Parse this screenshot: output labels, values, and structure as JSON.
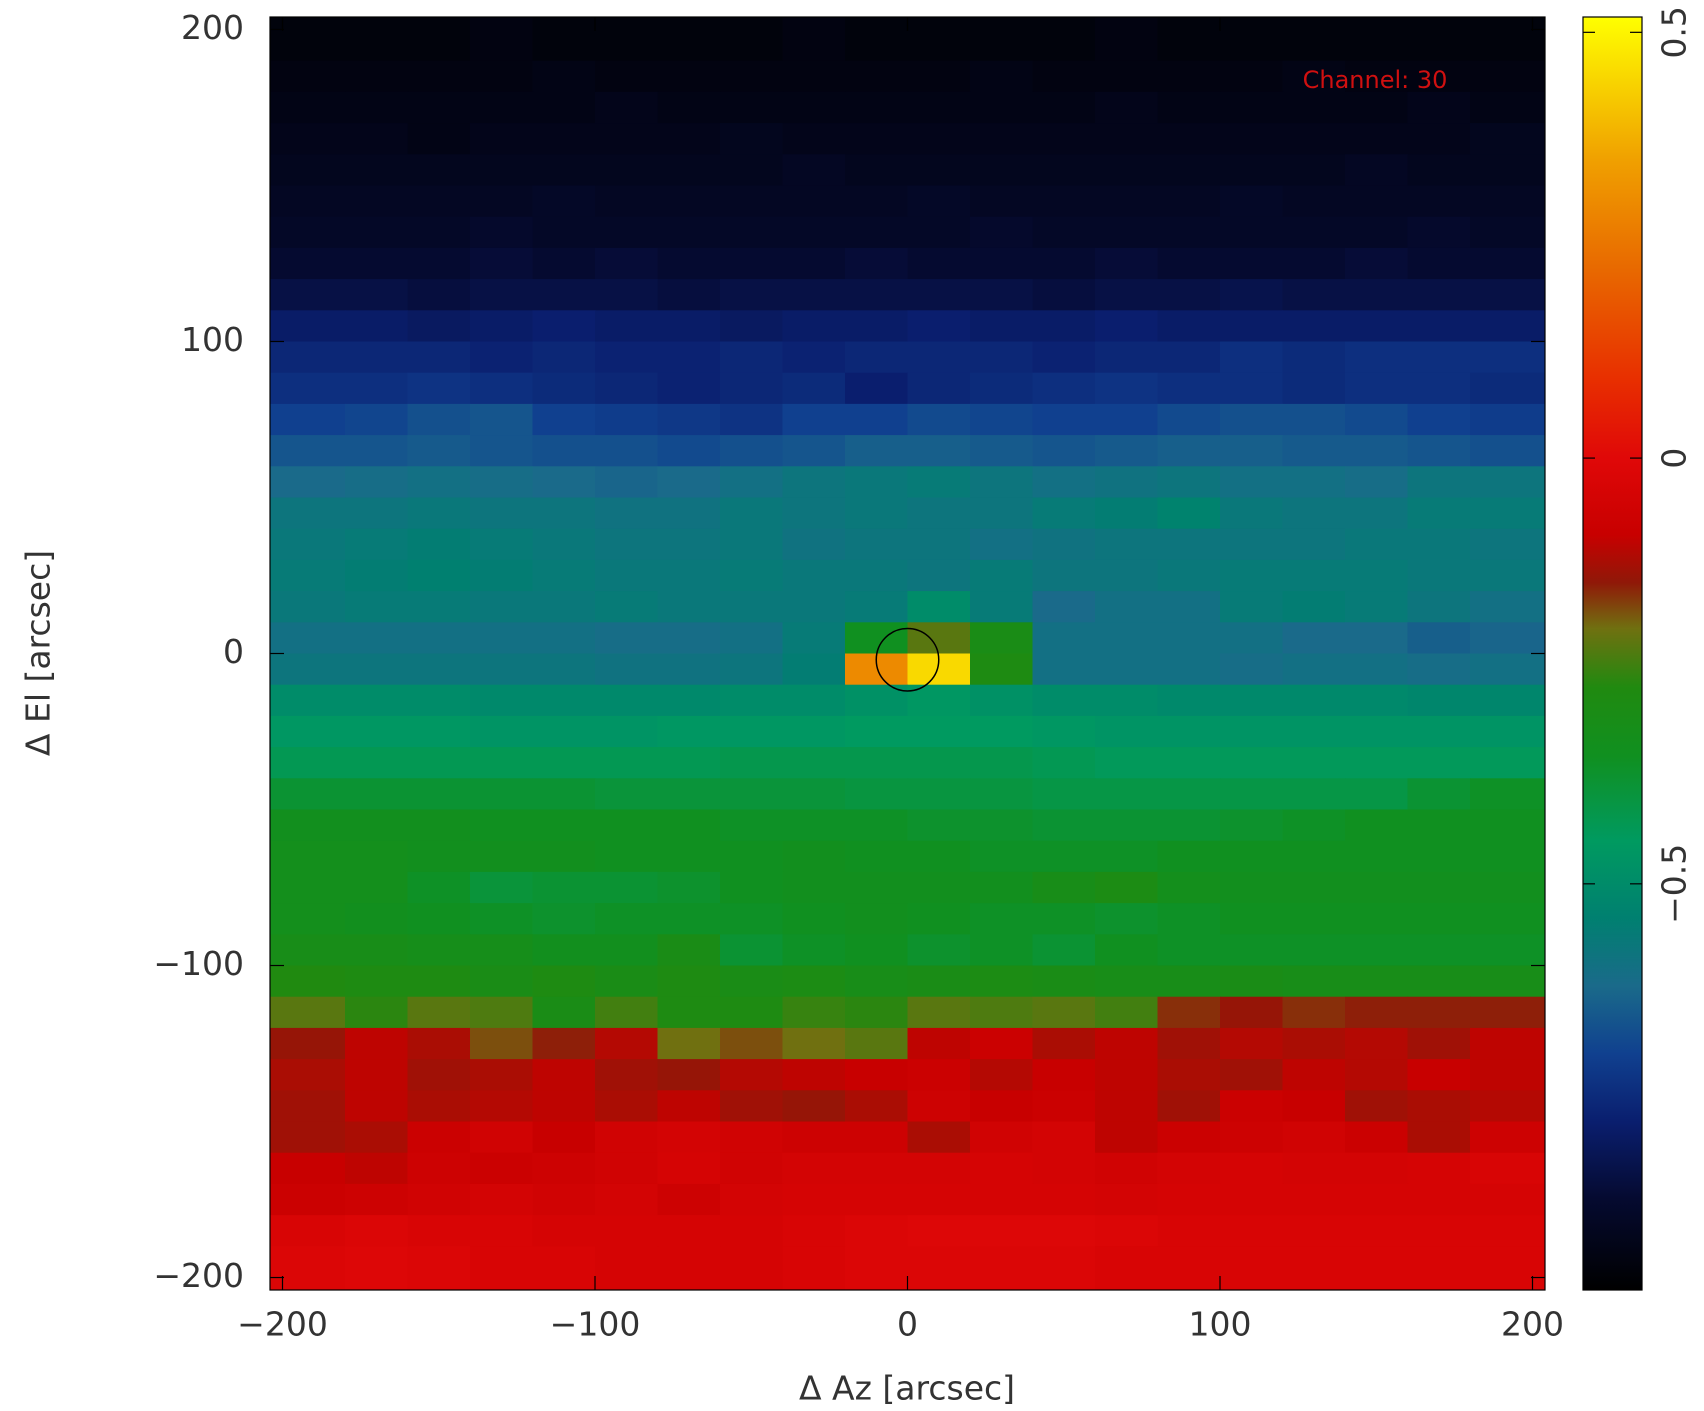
{
  "chart_data": {
    "type": "heatmap",
    "annotation": "Channel: 30",
    "xlabel": "Δ Az [arcsec]",
    "ylabel": "Δ El [arcsec]",
    "xlim": [
      -204,
      204
    ],
    "ylim": [
      -204,
      204
    ],
    "xticks": [
      {
        "value": -200,
        "label": "−200"
      },
      {
        "value": -100,
        "label": "−100"
      },
      0,
      100,
      200
    ],
    "yticks": [
      {
        "value": -200,
        "label": "−200"
      },
      {
        "value": -100,
        "label": "−100"
      },
      0,
      100,
      200
    ],
    "zlim": [
      -0.977,
      0.518
    ],
    "zticks": [
      {
        "value": -0.5,
        "label": "−0.5"
      },
      0,
      0.5
    ],
    "colormap": [
      [
        -0.977,
        "#000000"
      ],
      [
        -0.87,
        "#050a30"
      ],
      [
        -0.78,
        "#0a1e6e"
      ],
      [
        -0.7,
        "#10408f"
      ],
      [
        -0.62,
        "#1a6a8a"
      ],
      [
        -0.54,
        "#008070"
      ],
      [
        -0.45,
        "#009a60"
      ],
      [
        -0.35,
        "#109020"
      ],
      [
        -0.27,
        "#208a10"
      ],
      [
        -0.2,
        "#707010"
      ],
      [
        -0.146,
        "#901808"
      ],
      [
        -0.09,
        "#c80000"
      ],
      [
        0,
        "#e00808"
      ],
      [
        0.095,
        "#e83000"
      ],
      [
        0.22,
        "#e86800"
      ],
      [
        0.35,
        "#f0a000"
      ],
      [
        0.518,
        "#ffff00"
      ]
    ],
    "beam": {
      "x": 0,
      "y": -2,
      "radius": 10,
      "color": "#000000"
    },
    "x": [
      -190,
      -170,
      -150,
      -130,
      -110,
      -90,
      -70,
      -50,
      -30,
      -10,
      10,
      30,
      50,
      70,
      90,
      110,
      130,
      150,
      170,
      190
    ],
    "y": [
      195,
      185,
      175,
      165,
      155,
      145,
      135,
      125,
      115,
      105,
      95,
      85,
      75,
      65,
      55,
      45,
      35,
      25,
      15,
      5,
      -5,
      -15,
      -25,
      -35,
      -45,
      -55,
      -65,
      -75,
      -85,
      -95,
      -105,
      -115,
      -125,
      -135,
      -145,
      -155,
      -165,
      -175,
      -185,
      -195
    ],
    "z": [
      [
        -0.95,
        -0.95,
        -0.95,
        -0.94,
        -0.95,
        -0.95,
        -0.95,
        -0.95,
        -0.94,
        -0.95,
        -0.95,
        -0.95,
        -0.95,
        -0.94,
        -0.95,
        -0.95,
        -0.95,
        -0.95,
        -0.95,
        -0.95
      ],
      [
        -0.94,
        -0.94,
        -0.94,
        -0.94,
        -0.93,
        -0.94,
        -0.94,
        -0.94,
        -0.94,
        -0.94,
        -0.94,
        -0.93,
        -0.94,
        -0.94,
        -0.94,
        -0.94,
        -0.93,
        -0.94,
        -0.94,
        -0.94
      ],
      [
        -0.93,
        -0.93,
        -0.93,
        -0.93,
        -0.93,
        -0.92,
        -0.93,
        -0.93,
        -0.93,
        -0.93,
        -0.93,
        -0.93,
        -0.93,
        -0.92,
        -0.93,
        -0.93,
        -0.93,
        -0.93,
        -0.92,
        -0.93
      ],
      [
        -0.92,
        -0.92,
        -0.93,
        -0.92,
        -0.92,
        -0.92,
        -0.92,
        -0.91,
        -0.92,
        -0.92,
        -0.92,
        -0.92,
        -0.92,
        -0.92,
        -0.92,
        -0.92,
        -0.92,
        -0.92,
        -0.92,
        -0.91
      ],
      [
        -0.91,
        -0.91,
        -0.91,
        -0.91,
        -0.91,
        -0.91,
        -0.91,
        -0.91,
        -0.9,
        -0.91,
        -0.91,
        -0.91,
        -0.91,
        -0.91,
        -0.91,
        -0.91,
        -0.91,
        -0.9,
        -0.91,
        -0.91
      ],
      [
        -0.9,
        -0.9,
        -0.9,
        -0.9,
        -0.89,
        -0.9,
        -0.9,
        -0.9,
        -0.9,
        -0.9,
        -0.89,
        -0.9,
        -0.9,
        -0.9,
        -0.9,
        -0.89,
        -0.9,
        -0.9,
        -0.9,
        -0.9
      ],
      [
        -0.89,
        -0.89,
        -0.89,
        -0.88,
        -0.89,
        -0.89,
        -0.89,
        -0.89,
        -0.89,
        -0.89,
        -0.89,
        -0.88,
        -0.89,
        -0.89,
        -0.89,
        -0.89,
        -0.89,
        -0.89,
        -0.88,
        -0.89
      ],
      [
        -0.87,
        -0.87,
        -0.87,
        -0.86,
        -0.87,
        -0.86,
        -0.87,
        -0.87,
        -0.87,
        -0.86,
        -0.87,
        -0.87,
        -0.87,
        -0.86,
        -0.87,
        -0.87,
        -0.87,
        -0.86,
        -0.87,
        -0.87
      ],
      [
        -0.84,
        -0.84,
        -0.85,
        -0.84,
        -0.84,
        -0.84,
        -0.85,
        -0.84,
        -0.84,
        -0.84,
        -0.84,
        -0.84,
        -0.85,
        -0.84,
        -0.84,
        -0.83,
        -0.84,
        -0.84,
        -0.84,
        -0.84
      ],
      [
        -0.79,
        -0.79,
        -0.8,
        -0.79,
        -0.78,
        -0.79,
        -0.79,
        -0.8,
        -0.79,
        -0.79,
        -0.78,
        -0.79,
        -0.79,
        -0.78,
        -0.79,
        -0.79,
        -0.79,
        -0.79,
        -0.79,
        -0.79
      ],
      [
        -0.76,
        -0.76,
        -0.76,
        -0.77,
        -0.76,
        -0.77,
        -0.77,
        -0.76,
        -0.77,
        -0.76,
        -0.76,
        -0.76,
        -0.77,
        -0.76,
        -0.76,
        -0.74,
        -0.75,
        -0.74,
        -0.74,
        -0.74
      ],
      [
        -0.74,
        -0.74,
        -0.73,
        -0.74,
        -0.75,
        -0.76,
        -0.77,
        -0.76,
        -0.75,
        -0.78,
        -0.76,
        -0.75,
        -0.74,
        -0.73,
        -0.74,
        -0.74,
        -0.75,
        -0.74,
        -0.74,
        -0.75
      ],
      [
        -0.7,
        -0.69,
        -0.67,
        -0.66,
        -0.7,
        -0.71,
        -0.72,
        -0.73,
        -0.7,
        -0.7,
        -0.68,
        -0.69,
        -0.7,
        -0.7,
        -0.68,
        -0.67,
        -0.67,
        -0.68,
        -0.7,
        -0.71
      ],
      [
        -0.66,
        -0.66,
        -0.65,
        -0.66,
        -0.67,
        -0.67,
        -0.68,
        -0.67,
        -0.66,
        -0.64,
        -0.64,
        -0.65,
        -0.66,
        -0.65,
        -0.64,
        -0.64,
        -0.65,
        -0.65,
        -0.66,
        -0.67
      ],
      [
        -0.62,
        -0.61,
        -0.6,
        -0.61,
        -0.62,
        -0.63,
        -0.62,
        -0.6,
        -0.58,
        -0.57,
        -0.56,
        -0.58,
        -0.6,
        -0.59,
        -0.58,
        -0.6,
        -0.6,
        -0.61,
        -0.58,
        -0.58
      ],
      [
        -0.58,
        -0.58,
        -0.57,
        -0.58,
        -0.58,
        -0.59,
        -0.59,
        -0.57,
        -0.58,
        -0.57,
        -0.58,
        -0.58,
        -0.56,
        -0.55,
        -0.53,
        -0.57,
        -0.58,
        -0.58,
        -0.56,
        -0.56
      ],
      [
        -0.57,
        -0.56,
        -0.55,
        -0.56,
        -0.57,
        -0.58,
        -0.58,
        -0.57,
        -0.59,
        -0.58,
        -0.58,
        -0.6,
        -0.59,
        -0.58,
        -0.58,
        -0.58,
        -0.58,
        -0.57,
        -0.57,
        -0.58
      ],
      [
        -0.56,
        -0.55,
        -0.54,
        -0.55,
        -0.56,
        -0.57,
        -0.57,
        -0.56,
        -0.57,
        -0.57,
        -0.58,
        -0.56,
        -0.58,
        -0.58,
        -0.57,
        -0.56,
        -0.56,
        -0.56,
        -0.57,
        -0.57
      ],
      [
        -0.57,
        -0.56,
        -0.56,
        -0.57,
        -0.57,
        -0.56,
        -0.57,
        -0.57,
        -0.57,
        -0.56,
        -0.5,
        -0.56,
        -0.62,
        -0.6,
        -0.6,
        -0.56,
        -0.55,
        -0.56,
        -0.58,
        -0.6
      ],
      [
        -0.6,
        -0.6,
        -0.6,
        -0.6,
        -0.6,
        -0.61,
        -0.61,
        -0.6,
        -0.56,
        -0.35,
        -0.22,
        -0.3,
        -0.6,
        -0.6,
        -0.6,
        -0.6,
        -0.62,
        -0.62,
        -0.64,
        -0.63
      ],
      [
        -0.58,
        -0.58,
        -0.58,
        -0.58,
        -0.58,
        -0.59,
        -0.59,
        -0.58,
        -0.55,
        0.3,
        0.45,
        -0.28,
        -0.6,
        -0.6,
        -0.6,
        -0.61,
        -0.6,
        -0.6,
        -0.61,
        -0.6
      ],
      [
        -0.5,
        -0.5,
        -0.5,
        -0.51,
        -0.51,
        -0.51,
        -0.51,
        -0.5,
        -0.5,
        -0.48,
        -0.46,
        -0.48,
        -0.5,
        -0.5,
        -0.51,
        -0.51,
        -0.51,
        -0.51,
        -0.52,
        -0.52
      ],
      [
        -0.46,
        -0.46,
        -0.46,
        -0.47,
        -0.47,
        -0.47,
        -0.46,
        -0.46,
        -0.46,
        -0.45,
        -0.45,
        -0.45,
        -0.46,
        -0.47,
        -0.47,
        -0.47,
        -0.47,
        -0.47,
        -0.47,
        -0.47
      ],
      [
        -0.43,
        -0.43,
        -0.43,
        -0.43,
        -0.43,
        -0.43,
        -0.43,
        -0.42,
        -0.42,
        -0.42,
        -0.42,
        -0.42,
        -0.43,
        -0.44,
        -0.44,
        -0.44,
        -0.44,
        -0.44,
        -0.44,
        -0.44
      ],
      [
        -0.38,
        -0.38,
        -0.38,
        -0.38,
        -0.38,
        -0.39,
        -0.39,
        -0.39,
        -0.39,
        -0.4,
        -0.4,
        -0.4,
        -0.41,
        -0.41,
        -0.41,
        -0.41,
        -0.41,
        -0.41,
        -0.38,
        -0.36
      ],
      [
        -0.34,
        -0.34,
        -0.34,
        -0.35,
        -0.35,
        -0.35,
        -0.35,
        -0.36,
        -0.36,
        -0.36,
        -0.37,
        -0.37,
        -0.38,
        -0.38,
        -0.38,
        -0.37,
        -0.36,
        -0.35,
        -0.35,
        -0.35
      ],
      [
        -0.33,
        -0.33,
        -0.34,
        -0.34,
        -0.34,
        -0.35,
        -0.35,
        -0.35,
        -0.34,
        -0.35,
        -0.35,
        -0.36,
        -0.36,
        -0.36,
        -0.35,
        -0.35,
        -0.35,
        -0.35,
        -0.35,
        -0.35
      ],
      [
        -0.33,
        -0.33,
        -0.36,
        -0.39,
        -0.38,
        -0.38,
        -0.37,
        -0.35,
        -0.34,
        -0.34,
        -0.34,
        -0.34,
        -0.31,
        -0.29,
        -0.33,
        -0.34,
        -0.34,
        -0.34,
        -0.34,
        -0.34
      ],
      [
        -0.33,
        -0.34,
        -0.35,
        -0.36,
        -0.37,
        -0.36,
        -0.36,
        -0.36,
        -0.35,
        -0.34,
        -0.35,
        -0.36,
        -0.36,
        -0.37,
        -0.36,
        -0.35,
        -0.35,
        -0.35,
        -0.35,
        -0.35
      ],
      [
        -0.31,
        -0.31,
        -0.32,
        -0.32,
        -0.34,
        -0.34,
        -0.3,
        -0.38,
        -0.36,
        -0.35,
        -0.37,
        -0.36,
        -0.38,
        -0.35,
        -0.36,
        -0.36,
        -0.36,
        -0.36,
        -0.36,
        -0.36
      ],
      [
        -0.27,
        -0.28,
        -0.28,
        -0.3,
        -0.28,
        -0.3,
        -0.28,
        -0.3,
        -0.29,
        -0.31,
        -0.3,
        -0.29,
        -0.3,
        -0.31,
        -0.31,
        -0.3,
        -0.31,
        -0.31,
        -0.31,
        -0.31
      ],
      [
        -0.22,
        -0.26,
        -0.22,
        -0.23,
        -0.3,
        -0.24,
        -0.28,
        -0.28,
        -0.25,
        -0.26,
        -0.22,
        -0.23,
        -0.22,
        -0.24,
        -0.16,
        -0.14,
        -0.16,
        -0.15,
        -0.15,
        -0.15
      ],
      [
        -0.14,
        -0.1,
        -0.12,
        -0.18,
        -0.15,
        -0.11,
        -0.2,
        -0.18,
        -0.2,
        -0.22,
        -0.1,
        -0.08,
        -0.12,
        -0.1,
        -0.13,
        -0.11,
        -0.12,
        -0.11,
        -0.13,
        -0.1
      ],
      [
        -0.12,
        -0.1,
        -0.13,
        -0.12,
        -0.1,
        -0.13,
        -0.14,
        -0.11,
        -0.1,
        -0.09,
        -0.08,
        -0.11,
        -0.09,
        -0.1,
        -0.12,
        -0.13,
        -0.1,
        -0.11,
        -0.09,
        -0.1
      ],
      [
        -0.13,
        -0.1,
        -0.12,
        -0.11,
        -0.1,
        -0.12,
        -0.1,
        -0.13,
        -0.14,
        -0.12,
        -0.07,
        -0.09,
        -0.08,
        -0.1,
        -0.13,
        -0.08,
        -0.09,
        -0.13,
        -0.12,
        -0.11
      ],
      [
        -0.13,
        -0.12,
        -0.08,
        -0.06,
        -0.09,
        -0.06,
        -0.05,
        -0.06,
        -0.07,
        -0.07,
        -0.12,
        -0.06,
        -0.05,
        -0.1,
        -0.08,
        -0.07,
        -0.06,
        -0.08,
        -0.12,
        -0.07
      ],
      [
        -0.09,
        -0.1,
        -0.07,
        -0.08,
        -0.07,
        -0.06,
        -0.04,
        -0.06,
        -0.05,
        -0.05,
        -0.05,
        -0.04,
        -0.05,
        -0.06,
        -0.05,
        -0.04,
        -0.05,
        -0.05,
        -0.04,
        -0.03
      ],
      [
        -0.08,
        -0.07,
        -0.06,
        -0.05,
        -0.06,
        -0.05,
        -0.07,
        -0.05,
        -0.04,
        -0.04,
        -0.04,
        -0.04,
        -0.04,
        -0.05,
        -0.04,
        -0.04,
        -0.04,
        -0.04,
        -0.04,
        -0.04
      ],
      [
        -0.03,
        -0.02,
        -0.03,
        -0.03,
        -0.04,
        -0.04,
        -0.04,
        -0.04,
        -0.03,
        -0.02,
        -0.01,
        -0.01,
        -0.01,
        -0.02,
        -0.03,
        -0.03,
        -0.03,
        -0.03,
        -0.03,
        -0.03
      ],
      [
        -0.02,
        -0.01,
        -0.02,
        -0.03,
        -0.03,
        -0.04,
        -0.04,
        -0.04,
        -0.03,
        -0.02,
        -0.02,
        -0.02,
        -0.02,
        -0.03,
        -0.03,
        -0.03,
        -0.03,
        -0.03,
        -0.03,
        -0.03
      ]
    ]
  }
}
